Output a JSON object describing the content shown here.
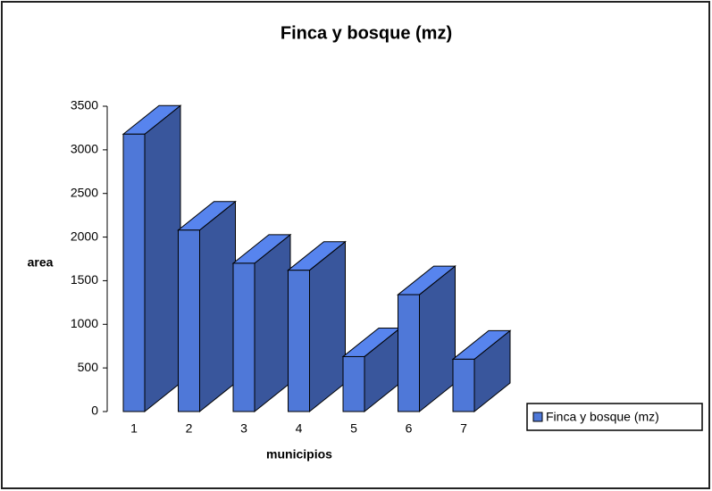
{
  "chart_data": {
    "type": "bar3d",
    "title": "Finca  y bosque  (mz)",
    "x_label": "municipios",
    "y_label": "area",
    "categories": [
      "1",
      "2",
      "3",
      "4",
      "5",
      "6",
      "7"
    ],
    "series": [
      {
        "name": "Finca  y bosque  (mz)",
        "color": "#4f78d8",
        "values": [
          3180,
          2080,
          1700,
          1620,
          630,
          1340,
          600
        ]
      }
    ],
    "ylim": [
      0,
      3500
    ],
    "yticks": [
      0,
      500,
      1000,
      1500,
      2000,
      2500,
      3000,
      3500
    ],
    "legend": "right"
  }
}
